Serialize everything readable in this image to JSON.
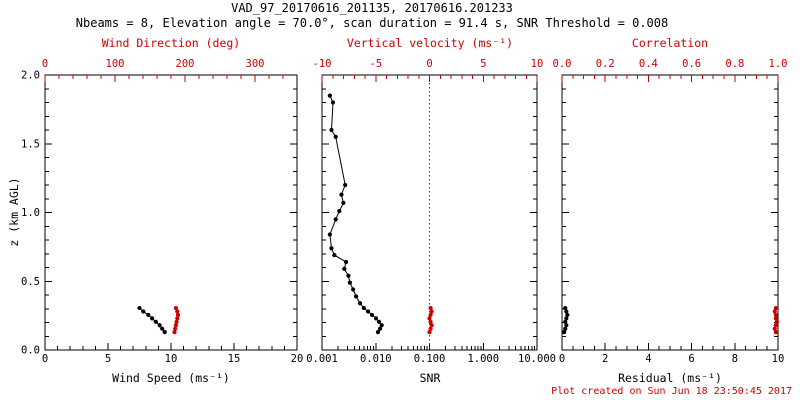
{
  "header": {
    "line1": "VAD_97_20170616_201135, 20170616.201233",
    "line2": "Nbeams = 8, Elevation angle = 70.0°, scan duration = 91.4 s, SNR Threshold = 0.008"
  },
  "footer": {
    "note": "Plot created on Sun Jun 18 23:50:45 2017"
  },
  "colors": {
    "axis_black": "#000000",
    "accent_red": "#cc0000"
  },
  "chart_data": {
    "type": "line",
    "title": "VAD_97_20170616_201135, 20170616.201233",
    "y_axis": {
      "label": "z (km AGL)",
      "min": 0.0,
      "max": 2.0,
      "ticks": [
        0.0,
        0.5,
        1.0,
        1.5,
        2.0
      ],
      "tick_labels": [
        "0.0",
        "0.5",
        "1.0",
        "1.5",
        "2.0"
      ],
      "minor_step": 0.1
    },
    "panels": [
      {
        "name": "wind",
        "bottom_axis": {
          "label": "Wind Speed (ms⁻¹)",
          "scale": "linear",
          "min": 0,
          "max": 20,
          "ticks": [
            0,
            5,
            10,
            15,
            20
          ],
          "tick_labels": [
            "0",
            "5",
            "10",
            "15",
            "20"
          ],
          "minor_step": 1,
          "color": "#000000"
        },
        "top_axis": {
          "label": "Wind Direction (deg)",
          "scale": "linear",
          "min": 0,
          "max": 360,
          "ticks": [
            0,
            100,
            200,
            300
          ],
          "tick_labels": [
            "0",
            "100",
            "200",
            "300"
          ],
          "minor_step": 20,
          "color": "#cc0000"
        },
        "series": [
          {
            "name": "wind_speed",
            "axis": "bottom",
            "color": "#000000",
            "z": [
              0.305,
              0.28,
              0.255,
              0.23,
              0.205,
              0.18,
              0.155,
              0.13
            ],
            "values": [
              7.5,
              7.8,
              8.2,
              8.5,
              8.8,
              9.1,
              9.3,
              9.5
            ]
          },
          {
            "name": "wind_direction",
            "axis": "top",
            "color": "#cc0000",
            "z": [
              0.305,
              0.28,
              0.255,
              0.23,
              0.205,
              0.18,
              0.155,
              0.13
            ],
            "values": [
              187,
              189,
              190,
              189,
              188,
              187,
              186,
              185
            ]
          }
        ]
      },
      {
        "name": "snr",
        "bottom_axis": {
          "label": "SNR",
          "scale": "log",
          "min": 0.001,
          "max": 10,
          "ticks": [
            0.001,
            0.01,
            0.1,
            1,
            10
          ],
          "tick_labels": [
            "0.001",
            "0.010",
            "0.100",
            "1.000",
            "10.000"
          ],
          "color": "#000000"
        },
        "top_axis": {
          "label": "Vertical velocity (ms⁻¹)",
          "scale": "linear",
          "min": -10,
          "max": 10,
          "ticks": [
            -10,
            -5,
            0,
            5,
            10
          ],
          "tick_labels": [
            "-10",
            "-5",
            "0",
            "5",
            "10"
          ],
          "minor_step": 1,
          "color": "#cc0000"
        },
        "ref_line": {
          "axis": "top",
          "value": 0,
          "color": "#cc0000",
          "style": "dotted"
        },
        "series": [
          {
            "name": "snr",
            "axis": "bottom",
            "color": "#000000",
            "z": [
              1.85,
              1.8,
              1.6,
              1.55,
              1.2,
              1.13,
              1.07,
              1.01,
              0.95,
              0.84,
              0.74,
              0.69,
              0.64,
              0.59,
              0.54,
              0.49,
              0.44,
              0.39,
              0.34,
              0.305,
              0.28,
              0.255,
              0.23,
              0.205,
              0.18,
              0.155,
              0.13
            ],
            "values": [
              0.0014,
              0.0016,
              0.0015,
              0.0018,
              0.0027,
              0.0023,
              0.0025,
              0.0021,
              0.0018,
              0.0014,
              0.0015,
              0.0017,
              0.0028,
              0.0026,
              0.0031,
              0.0033,
              0.0038,
              0.0043,
              0.0051,
              0.006,
              0.0072,
              0.0085,
              0.0101,
              0.0115,
              0.0129,
              0.012,
              0.011
            ]
          },
          {
            "name": "vertical_velocity",
            "axis": "top",
            "color": "#cc0000",
            "z": [
              0.305,
              0.28,
              0.255,
              0.23,
              0.205,
              0.18,
              0.155,
              0.13
            ],
            "values": [
              0.1,
              0.2,
              0.1,
              0.0,
              0.1,
              0.2,
              0.1,
              0.0
            ]
          }
        ]
      },
      {
        "name": "residual",
        "bottom_axis": {
          "label": "Residual (ms⁻¹)",
          "scale": "linear",
          "min": 0,
          "max": 10,
          "ticks": [
            0,
            2,
            4,
            6,
            8,
            10
          ],
          "tick_labels": [
            "0",
            "2",
            "4",
            "6",
            "8",
            "10"
          ],
          "minor_step": 0.5,
          "color": "#000000"
        },
        "top_axis": {
          "label": "Correlation",
          "scale": "linear",
          "min": 0,
          "max": 1,
          "ticks": [
            0,
            0.2,
            0.4,
            0.6,
            0.8,
            1.0
          ],
          "tick_labels": [
            "0.0",
            "0.2",
            "0.4",
            "0.6",
            "0.8",
            "1.0"
          ],
          "minor_step": 0.05,
          "color": "#cc0000"
        },
        "series": [
          {
            "name": "residual",
            "axis": "bottom",
            "color": "#000000",
            "z": [
              0.305,
              0.28,
              0.255,
              0.23,
              0.205,
              0.18,
              0.155,
              0.13
            ],
            "values": [
              0.15,
              0.2,
              0.25,
              0.2,
              0.15,
              0.2,
              0.15,
              0.1
            ]
          },
          {
            "name": "correlation",
            "axis": "top",
            "color": "#cc0000",
            "z": [
              0.305,
              0.28,
              0.255,
              0.23,
              0.205,
              0.18,
              0.155,
              0.13
            ],
            "values": [
              0.99,
              0.985,
              0.99,
              0.99,
              0.995,
              0.99,
              0.985,
              0.99
            ]
          }
        ]
      }
    ]
  }
}
